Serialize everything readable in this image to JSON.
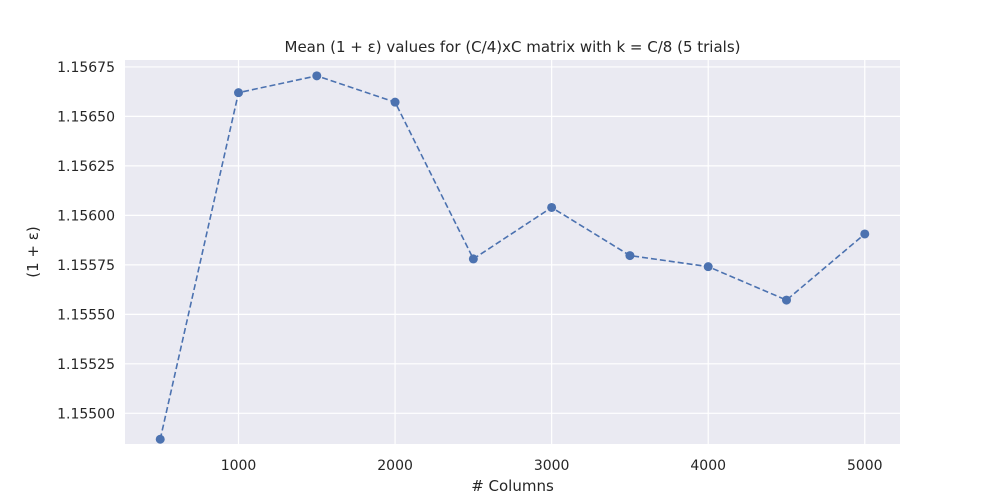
{
  "chart_data": {
    "type": "line",
    "title": "Mean (1 + ε) values for (C/4)xC matrix with k = C/8 (5 trials)",
    "xlabel": "# Columns",
    "ylabel": "(1 + ε)",
    "xlim": [
      275,
      5225
    ],
    "ylim": [
      1.154845,
      1.156785
    ],
    "x_ticks": [
      1000,
      2000,
      3000,
      4000,
      5000
    ],
    "x_tick_labels": [
      "1000",
      "2000",
      "3000",
      "4000",
      "5000"
    ],
    "y_ticks": [
      1.155,
      1.15525,
      1.1555,
      1.15575,
      1.156,
      1.15625,
      1.1565,
      1.15675
    ],
    "y_tick_labels": [
      "1.15500",
      "1.15525",
      "1.15550",
      "1.15575",
      "1.15600",
      "1.15625",
      "1.15650",
      "1.15675"
    ],
    "grid": true,
    "line_style": "dashed",
    "marker": "circle",
    "colors": {
      "series": "#4c72b0",
      "background": "#eaeaf2",
      "grid": "#ffffff",
      "text": "#262626"
    },
    "series": [
      {
        "x": [
          500,
          1000,
          1500,
          2000,
          2500,
          3000,
          3500,
          4000,
          4500,
          5000
        ],
        "y": [
          1.154869,
          1.15662,
          1.156705,
          1.156572,
          1.15578,
          1.15604,
          1.155797,
          1.155741,
          1.155572,
          1.155906
        ]
      }
    ]
  }
}
